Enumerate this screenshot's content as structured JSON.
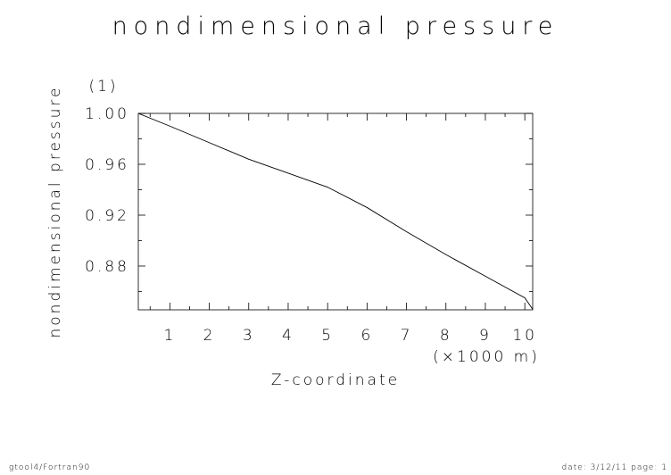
{
  "chart_data": {
    "type": "line",
    "title": "nondimensional pressure",
    "x_label": "Z-coordinate",
    "x_unit": "(×1000 m)",
    "y_label": "nondimensional pressure",
    "y_unit": "(1)",
    "x": [
      0.2,
      1,
      2,
      3,
      4,
      5,
      6,
      7,
      8,
      9,
      10,
      10.2
    ],
    "values": [
      1.0,
      0.99,
      0.977,
      0.964,
      0.953,
      0.942,
      0.926,
      0.907,
      0.889,
      0.872,
      0.855,
      0.846
    ],
    "color": "#000000",
    "xlim": [
      0.2,
      10.2
    ],
    "ylim": [
      0.8456,
      1.0
    ],
    "xticks": [
      1,
      2,
      3,
      4,
      5,
      6,
      7,
      8,
      9,
      10
    ],
    "xminorticks": [
      0.5,
      1.5,
      2.5,
      3.5,
      4.5,
      5.5,
      6.5,
      7.5,
      8.5,
      9.5
    ],
    "yticks": [
      {
        "value": 1.0,
        "label": "1.00"
      },
      0.96,
      0.92,
      0.88
    ],
    "yminorticks": [
      0.98,
      0.94,
      0.9,
      0.86
    ],
    "footer_left": "gtool4/Fortran90",
    "footer_right": "date: 3/12/11 page: 1"
  }
}
